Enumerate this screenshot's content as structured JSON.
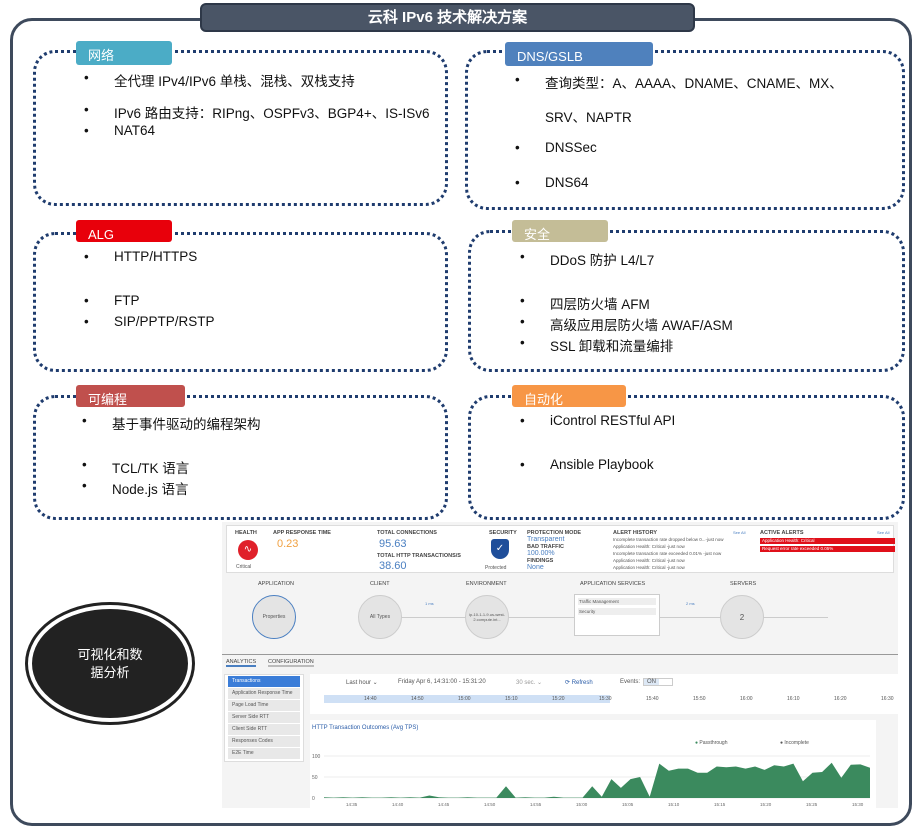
{
  "title": "云科 IPv6 技术解决方案",
  "sections": [
    {
      "label": "网络",
      "color": "#4bacc6",
      "items": [
        "全代理 IPv4/IPv6 单栈、混栈、双栈支持",
        "IPv6 路由支持：RIPng、OSPFv3、BGP4+、IS-ISv6",
        "NAT64"
      ]
    },
    {
      "label": "DNS/GSLB",
      "color": "#4f81bd",
      "items": [
        "查询类型：A、AAAA、DNAME、CNAME、MX、",
        "SRV、NAPTR",
        "DNSSec",
        "DNS64"
      ]
    },
    {
      "label": "ALG",
      "color": "#e8000b",
      "items": [
        "HTTP/HTTPS",
        "FTP",
        "SIP/PPTP/RSTP"
      ]
    },
    {
      "label": "安全",
      "color": "#c4bd97",
      "items": [
        "DDoS 防护 L4/L7",
        "四层防火墙 AFM",
        "高级应用层防火墙 AWAF/ASM",
        "SSL 卸载和流量编排"
      ]
    },
    {
      "label": "可编程",
      "color": "#c0504d",
      "items": [
        "基于事件驱动的编程架构",
        "TCL/TK 语言",
        "Node.js 语言"
      ]
    },
    {
      "label": "自动化",
      "color": "#f79646",
      "items": [
        "iControl RESTful API",
        "Ansible Playbook"
      ]
    }
  ],
  "oval": "可视化和数据分析",
  "dashboard": {
    "health": {
      "label": "HEALTH",
      "status": "Critical"
    },
    "art": {
      "label": "APP RESPONSE TIME",
      "value": "0.23"
    },
    "conn": {
      "label": "TOTAL CONNECTIONS",
      "value": "95.63",
      "label2": "TOTAL HTTP TRANSACTIONS/s",
      "value2": "38.60"
    },
    "security": {
      "label": "SECURITY",
      "status": "Protected"
    },
    "prot": {
      "l1": "PROTECTION MODE",
      "v1": "Transparent",
      "l2": "BAD TRAFFIC",
      "v2": "100.00%",
      "l3": "FINDINGS",
      "v3": "None"
    },
    "alerts": {
      "label": "ALERT HISTORY",
      "see": "See All",
      "items": [
        "Incomplete transaction rate dropped below 0...-just now",
        "Application Health: Critical -just now",
        "Incomplete transaction rate exceeded 0.01% -just now",
        "Application Health: Critical -just now",
        "Application Health: Critical -just now"
      ]
    },
    "active": {
      "label": "ACTIVE ALERTS",
      "see": "See All",
      "items": [
        "Application Health: Critical",
        "Request error rate exceeded 0.05%"
      ]
    },
    "flow": {
      "application": "APPLICATION",
      "properties": "Properties",
      "client": "CLIENT",
      "alltypes": "All Types",
      "env": "ENVIRONMENT",
      "envnode": "ip-10-1-1-9.us-west-2.compute.int...",
      "svc": "APPLICATION SERVICES",
      "tm": "Traffic Management",
      "sec": "Security",
      "servers": "SERVERS",
      "servercount": "2",
      "lat1": "1 ms",
      "lat2": "2 ms"
    },
    "tabs": [
      "ANALYTICS",
      "CONFIGURATION"
    ],
    "side": [
      "Transactions",
      "Application Response Time",
      "Page Load Time",
      "Server Side RTT",
      "Client Side RTT",
      "Responses Codes",
      "E2E Time"
    ],
    "toolbar": {
      "range": "Last hour ⌄",
      "date": "Friday Apr 6, 14:31:00 - 15:31:20",
      "interval": "30 sec. ⌄",
      "refresh": "⟳ Refresh",
      "events": "Events:",
      "on": "ON"
    },
    "timeline": [
      "14:40",
      "14:50",
      "15:00",
      "15:10",
      "15:20",
      "15:30",
      "15:40",
      "15:50",
      "16:00",
      "16:10",
      "16:20",
      "16:30"
    ]
  },
  "chart_data": {
    "type": "area",
    "title": "HTTP Transaction Outcomes (Avg TPS)",
    "legend": [
      "Passthrough",
      "Incomplete"
    ],
    "ylim": [
      0,
      100
    ],
    "yticks": [
      "100",
      "50",
      "0"
    ],
    "xticks": [
      "14:35",
      "14:40",
      "14:45",
      "14:50",
      "14:55",
      "15:00",
      "15:05",
      "15:10",
      "15:15",
      "15:20",
      "15:25",
      "15:30"
    ],
    "colors": {
      "Passthrough": "#3b8a5e",
      "Incomplete": "#111111"
    },
    "series": [
      {
        "name": "Passthrough",
        "values": [
          2,
          1,
          2,
          1,
          2,
          1,
          1,
          2,
          1,
          2,
          1,
          6,
          2,
          1,
          1,
          2,
          1,
          1,
          1,
          28,
          1,
          2,
          1,
          1,
          3,
          1,
          1,
          1,
          28,
          3,
          45,
          24,
          45,
          50,
          3,
          82,
          65,
          70,
          70,
          60,
          60,
          75,
          73,
          75,
          70,
          75,
          67,
          78,
          75,
          82,
          40,
          60,
          62,
          84,
          48,
          79,
          80,
          72
        ]
      }
    ]
  }
}
